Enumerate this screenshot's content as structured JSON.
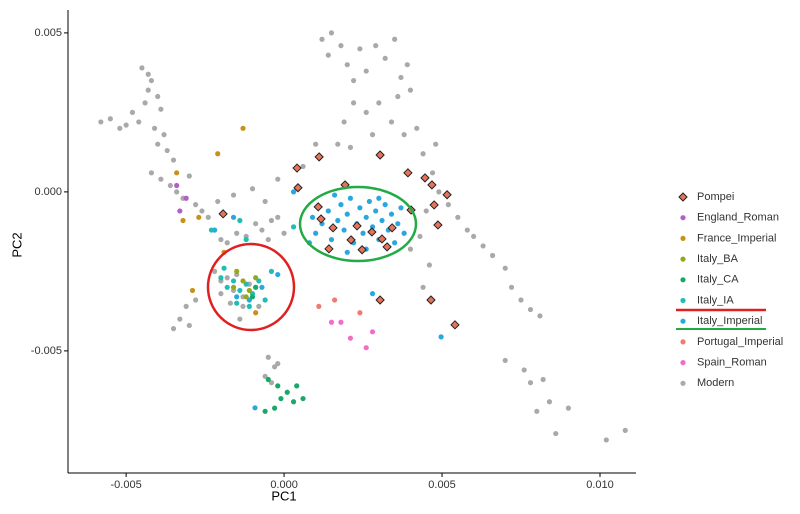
{
  "chart_data": {
    "type": "scatter",
    "xlabel": "PC1",
    "ylabel": "PC2",
    "xlim": [
      -0.00684,
      0.01114
    ],
    "ylim": [
      -0.00884,
      0.00572
    ],
    "xticks": [
      -0.005,
      {
        "value": 0,
        "label": "0.000"
      },
      0.005,
      {
        "value": 0.01,
        "label": "0.010"
      }
    ],
    "yticks": [
      -0.005,
      {
        "value": 0,
        "label": "0.000"
      },
      0.005
    ],
    "grid": false,
    "legend": "right",
    "series": [
      {
        "name": "Pompei",
        "color": "#e8735a",
        "marker": "diamond",
        "x": [
          0.00041,
          0.00044,
          0.00111,
          0.00193,
          0.00108,
          0.00117,
          0.00155,
          0.00212,
          0.00304,
          0.00278,
          0.00342,
          0.00392,
          0.00402,
          0.00446,
          0.00475,
          0.00468,
          0.00487,
          -0.00193,
          0.00142,
          0.00247,
          0.00304,
          0.00465,
          0.00541,
          0.00516,
          0.00326,
          0.00231,
          0.0031
        ],
        "y": [
          0.00075,
          0.00013,
          0.0011,
          0.00022,
          -0.00047,
          -0.00085,
          -0.00113,
          -0.00151,
          0.00116,
          -0.00126,
          -0.00113,
          0.0006,
          -0.00057,
          0.00044,
          -0.00041,
          0.00022,
          -0.00104,
          -0.00069,
          -0.00179,
          -0.00182,
          -0.0034,
          -0.0034,
          -0.00418,
          -9e-05,
          -0.00173,
          -0.00107,
          -0.00148
        ]
      },
      {
        "name": "England_Roman",
        "color": "#b45ec8",
        "x": [
          -0.0034,
          -0.0031,
          -0.0033
        ],
        "y": [
          0.0002,
          -0.0002,
          -0.0006
        ]
      },
      {
        "name": "France_Imperial",
        "color": "#c8921a",
        "x": [
          -0.0013,
          -0.0021,
          -0.0034,
          -0.0027,
          -0.0019,
          -0.0029,
          -0.0009,
          -0.0032
        ],
        "y": [
          0.002,
          0.0012,
          0.0006,
          -0.0008,
          -0.0019,
          -0.0031,
          -0.0038,
          -0.0009
        ]
      },
      {
        "name": "Italy_BA",
        "color": "#96a81a",
        "x": [
          -0.0013,
          -0.0016,
          -0.0011,
          -0.0009,
          -0.0015,
          -0.0012
        ],
        "y": [
          -0.0028,
          -0.003,
          -0.0031,
          -0.0027,
          -0.0025,
          -0.0033
        ]
      },
      {
        "name": "Italy_CA",
        "color": "#1aa86a",
        "x": [
          -0.0005,
          -0.0002,
          0.0001,
          0.0003,
          -0.0003,
          -0.0006,
          0.0006,
          -0.0001,
          0.0004,
          -0.0009,
          -0.001
        ],
        "y": [
          -0.0059,
          -0.0061,
          -0.0063,
          -0.0066,
          -0.0068,
          -0.0069,
          -0.0065,
          -0.0065,
          -0.0061,
          -0.003,
          -0.0033
        ]
      },
      {
        "name": "Italy_IA",
        "color": "#1ebeb4",
        "x": [
          -0.002,
          -0.0018,
          -0.0016,
          -0.0014,
          -0.0012,
          -0.001,
          -0.0008,
          -0.0015,
          -0.0011,
          -0.0006,
          -0.0019,
          -0.0004,
          -0.0023,
          -0.0014,
          0.0003,
          -0.0012
        ],
        "y": [
          -0.0027,
          -0.003,
          -0.0028,
          -0.0031,
          -0.0029,
          -0.0032,
          -0.0028,
          -0.0035,
          -0.0036,
          -0.0034,
          -0.0024,
          -0.0025,
          -0.0012,
          -0.0009,
          -0.0011,
          -0.0015
        ]
      },
      {
        "name": "Italy_Imperial",
        "color": "#29a8e0",
        "x": [
          0.001,
          0.0012,
          0.0014,
          0.0015,
          0.0017,
          0.0018,
          0.0019,
          0.002,
          0.0021,
          0.0022,
          0.0023,
          0.0024,
          0.0025,
          0.0026,
          0.0027,
          0.0028,
          0.0029,
          0.003,
          0.0031,
          0.0032,
          0.0033,
          0.0034,
          0.0035,
          0.0036,
          0.0037,
          0.0038,
          0.0008,
          0.0009,
          0.002,
          0.0026,
          0.0016,
          0.003,
          -0.0011,
          -0.0007,
          -0.0015,
          -0.0002,
          -0.0016,
          -0.0022,
          0.0003,
          0.00497,
          -0.00092,
          0.0028
        ],
        "y": [
          -0.0013,
          -0.001,
          -0.0006,
          -0.0015,
          -0.0009,
          -0.0004,
          -0.0012,
          -0.0007,
          -0.0002,
          -0.0016,
          -0.001,
          -0.0005,
          -0.0013,
          -0.0008,
          -0.0003,
          -0.0011,
          -0.0006,
          -0.0015,
          -0.0009,
          -0.0004,
          -0.0012,
          -0.0007,
          -0.0016,
          -0.001,
          -0.0005,
          -0.0013,
          -0.0016,
          -0.0008,
          -0.0019,
          -0.0018,
          -0.0001,
          -0.0002,
          -0.0034,
          -0.003,
          -0.0033,
          -0.0026,
          -0.0008,
          -0.0012,
          0.0,
          -0.00456,
          -0.00679,
          -0.0032
        ]
      },
      {
        "name": "Portugal_Imperial",
        "color": "#f07c70",
        "x": [
          0.0011,
          0.0016,
          0.0024
        ],
        "y": [
          -0.0036,
          -0.0034,
          -0.0038
        ]
      },
      {
        "name": "Spain_Roman",
        "color": "#f06ec8",
        "x": [
          0.0015,
          0.0018,
          0.0021,
          0.0026,
          0.0028
        ],
        "y": [
          -0.0041,
          -0.0041,
          -0.0046,
          -0.0049,
          -0.0044
        ]
      },
      {
        "name": "Modern",
        "color": "#a9a9a9",
        "x": [
          -0.0058,
          -0.0055,
          -0.0052,
          -0.005,
          -0.0048,
          -0.0046,
          -0.0044,
          -0.0043,
          -0.0042,
          -0.004,
          -0.0041,
          -0.0039,
          -0.0038,
          -0.0045,
          -0.0043,
          -0.004,
          -0.0037,
          -0.0035,
          -0.0042,
          -0.0039,
          -0.0036,
          -0.0034,
          -0.0032,
          -0.003,
          -0.0028,
          -0.0026,
          -0.0024,
          -0.0022,
          -0.002,
          -0.0018,
          -0.0015,
          -0.0012,
          -0.0009,
          -0.0007,
          -0.0005,
          -0.0004,
          -0.0002,
          0.0,
          -0.0006,
          -0.001,
          -0.0016,
          -0.0021,
          -0.0022,
          -0.002,
          -0.0018,
          -0.0016,
          -0.0015,
          -0.0013,
          -0.0011,
          -0.0009,
          -0.002,
          -0.0017,
          -0.0013,
          -0.0033,
          -0.0035,
          -0.0031,
          -0.003,
          -0.0028,
          -0.0014,
          -0.0008,
          -0.0005,
          -0.0003,
          -0.0006,
          -0.0004,
          -0.0002,
          0.0012,
          0.0015,
          0.0014,
          0.0018,
          0.002,
          0.0022,
          0.0024,
          0.0026,
          0.0029,
          0.0032,
          0.0035,
          0.0037,
          0.0039,
          0.004,
          0.0036,
          0.003,
          0.0026,
          0.0022,
          0.0019,
          0.0017,
          0.0021,
          0.0028,
          0.0034,
          0.0038,
          0.0042,
          0.0044,
          0.0047,
          0.0049,
          0.0052,
          0.0055,
          0.0058,
          0.006,
          0.0063,
          0.0066,
          0.007,
          0.0072,
          0.0075,
          0.0078,
          0.0081,
          0.0048,
          0.0045,
          0.0043,
          0.0046,
          0.0044,
          0.004,
          0.001,
          0.0006,
          -0.0002,
          0.0004,
          0.0076,
          0.0078,
          0.0082,
          0.0084,
          0.008,
          0.009,
          0.0102,
          0.0108,
          0.0086,
          0.007
        ],
        "y": [
          0.0022,
          0.0023,
          0.002,
          0.0021,
          0.0025,
          0.0022,
          0.0028,
          0.0032,
          0.0035,
          0.003,
          0.002,
          0.0026,
          0.0018,
          0.0039,
          0.0037,
          0.0015,
          0.0013,
          0.001,
          0.0006,
          0.0004,
          0.0002,
          0.0,
          -0.0002,
          0.0005,
          -0.0004,
          -0.0006,
          -0.0008,
          -0.0012,
          -0.0015,
          -0.0016,
          -0.0013,
          -0.0014,
          -0.001,
          -0.0012,
          -0.0015,
          -0.0009,
          -0.0008,
          -0.0013,
          -0.0003,
          0.0001,
          -0.0001,
          -0.0003,
          -0.0025,
          -0.0028,
          -0.0027,
          -0.0031,
          -0.0026,
          -0.0033,
          -0.0029,
          -0.003,
          -0.0032,
          -0.0035,
          -0.0036,
          -0.004,
          -0.0043,
          -0.0036,
          -0.0042,
          -0.0034,
          -0.004,
          -0.0036,
          -0.0052,
          -0.0055,
          -0.0058,
          -0.006,
          -0.0054,
          0.0048,
          0.005,
          0.0043,
          0.0046,
          0.004,
          0.0035,
          0.0045,
          0.0038,
          0.0046,
          0.0042,
          0.0048,
          0.0036,
          0.004,
          0.0032,
          0.003,
          0.0028,
          0.0025,
          0.0028,
          0.0022,
          0.0015,
          0.0014,
          0.0018,
          0.0022,
          0.0018,
          0.002,
          0.0012,
          0.0006,
          0.0,
          -0.0004,
          -0.0008,
          -0.0012,
          -0.0014,
          -0.0017,
          -0.002,
          -0.0024,
          -0.003,
          -0.0034,
          -0.0037,
          -0.0039,
          0.0015,
          -0.0006,
          -0.0014,
          -0.0023,
          -0.003,
          -0.0018,
          0.0015,
          0.0008,
          0.0004,
          0.0001,
          -0.0056,
          -0.006,
          -0.0059,
          -0.0066,
          -0.0069,
          -0.0068,
          -0.0078,
          -0.0075,
          -0.0076,
          -0.0053
        ]
      }
    ]
  }
}
